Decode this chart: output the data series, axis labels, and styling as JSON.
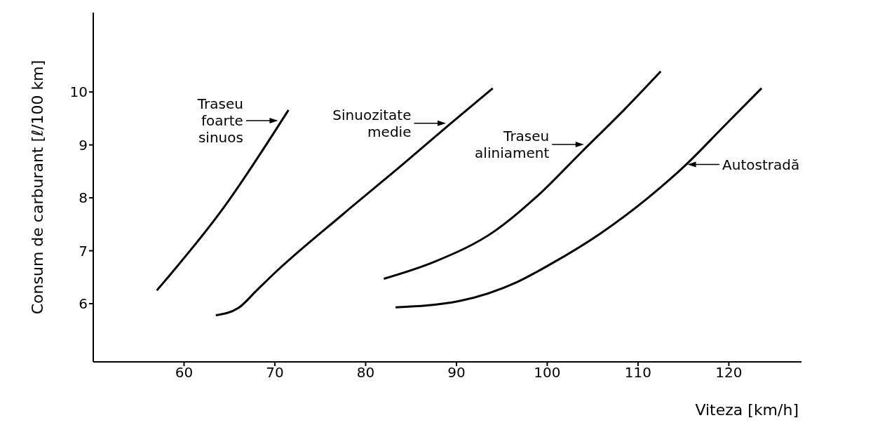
{
  "chart_data": {
    "type": "line",
    "xlabel": "Viteza [km/h]",
    "ylabel": "Consum de carburant [ℓ/100 km]",
    "xlim": [
      50,
      128
    ],
    "ylim": [
      4.9,
      11.5
    ],
    "xticks": [
      60,
      70,
      80,
      90,
      100,
      110,
      120
    ],
    "yticks": [
      6,
      7,
      8,
      9,
      10
    ],
    "grid": false,
    "legend": false,
    "marker": "none",
    "line_style": "solid",
    "series": [
      {
        "color": "#000000",
        "x": [
          57,
          64.3,
          71.5
        ],
        "values": [
          6.25,
          7.8,
          9.66
        ]
      },
      {
        "color": "#000000",
        "x": [
          63.5,
          66,
          68,
          69.8,
          77.5,
          84.2,
          89.2,
          94
        ],
        "values": [
          5.78,
          5.92,
          6.25,
          6.55,
          7.69,
          8.65,
          9.38,
          10.07
        ]
      },
      {
        "color": "#000000",
        "x": [
          82,
          87.7,
          94.2,
          99.2,
          103.8,
          108.5,
          112.5
        ],
        "values": [
          6.47,
          6.8,
          7.37,
          8.08,
          8.87,
          9.67,
          10.39
        ]
      },
      {
        "color": "#000000",
        "x": [
          83.3,
          90.3,
          96.7,
          100.5,
          105.8,
          111.1,
          115.3,
          119.5,
          123.6
        ],
        "values": [
          5.93,
          6.05,
          6.41,
          6.76,
          7.32,
          8.0,
          8.63,
          9.36,
          10.07
        ]
      }
    ],
    "annotations": [
      {
        "text": "Traseu foarte sinuos",
        "x": 70.5,
        "y": 9.46
      },
      {
        "text": "Sinuozitate medie",
        "x": 89,
        "y": 9.41
      },
      {
        "text": "Traseu aliniament",
        "x": 104.2,
        "y": 9.01
      },
      {
        "text": "Autostradă",
        "x": 115.3,
        "y": 8.63
      }
    ]
  }
}
